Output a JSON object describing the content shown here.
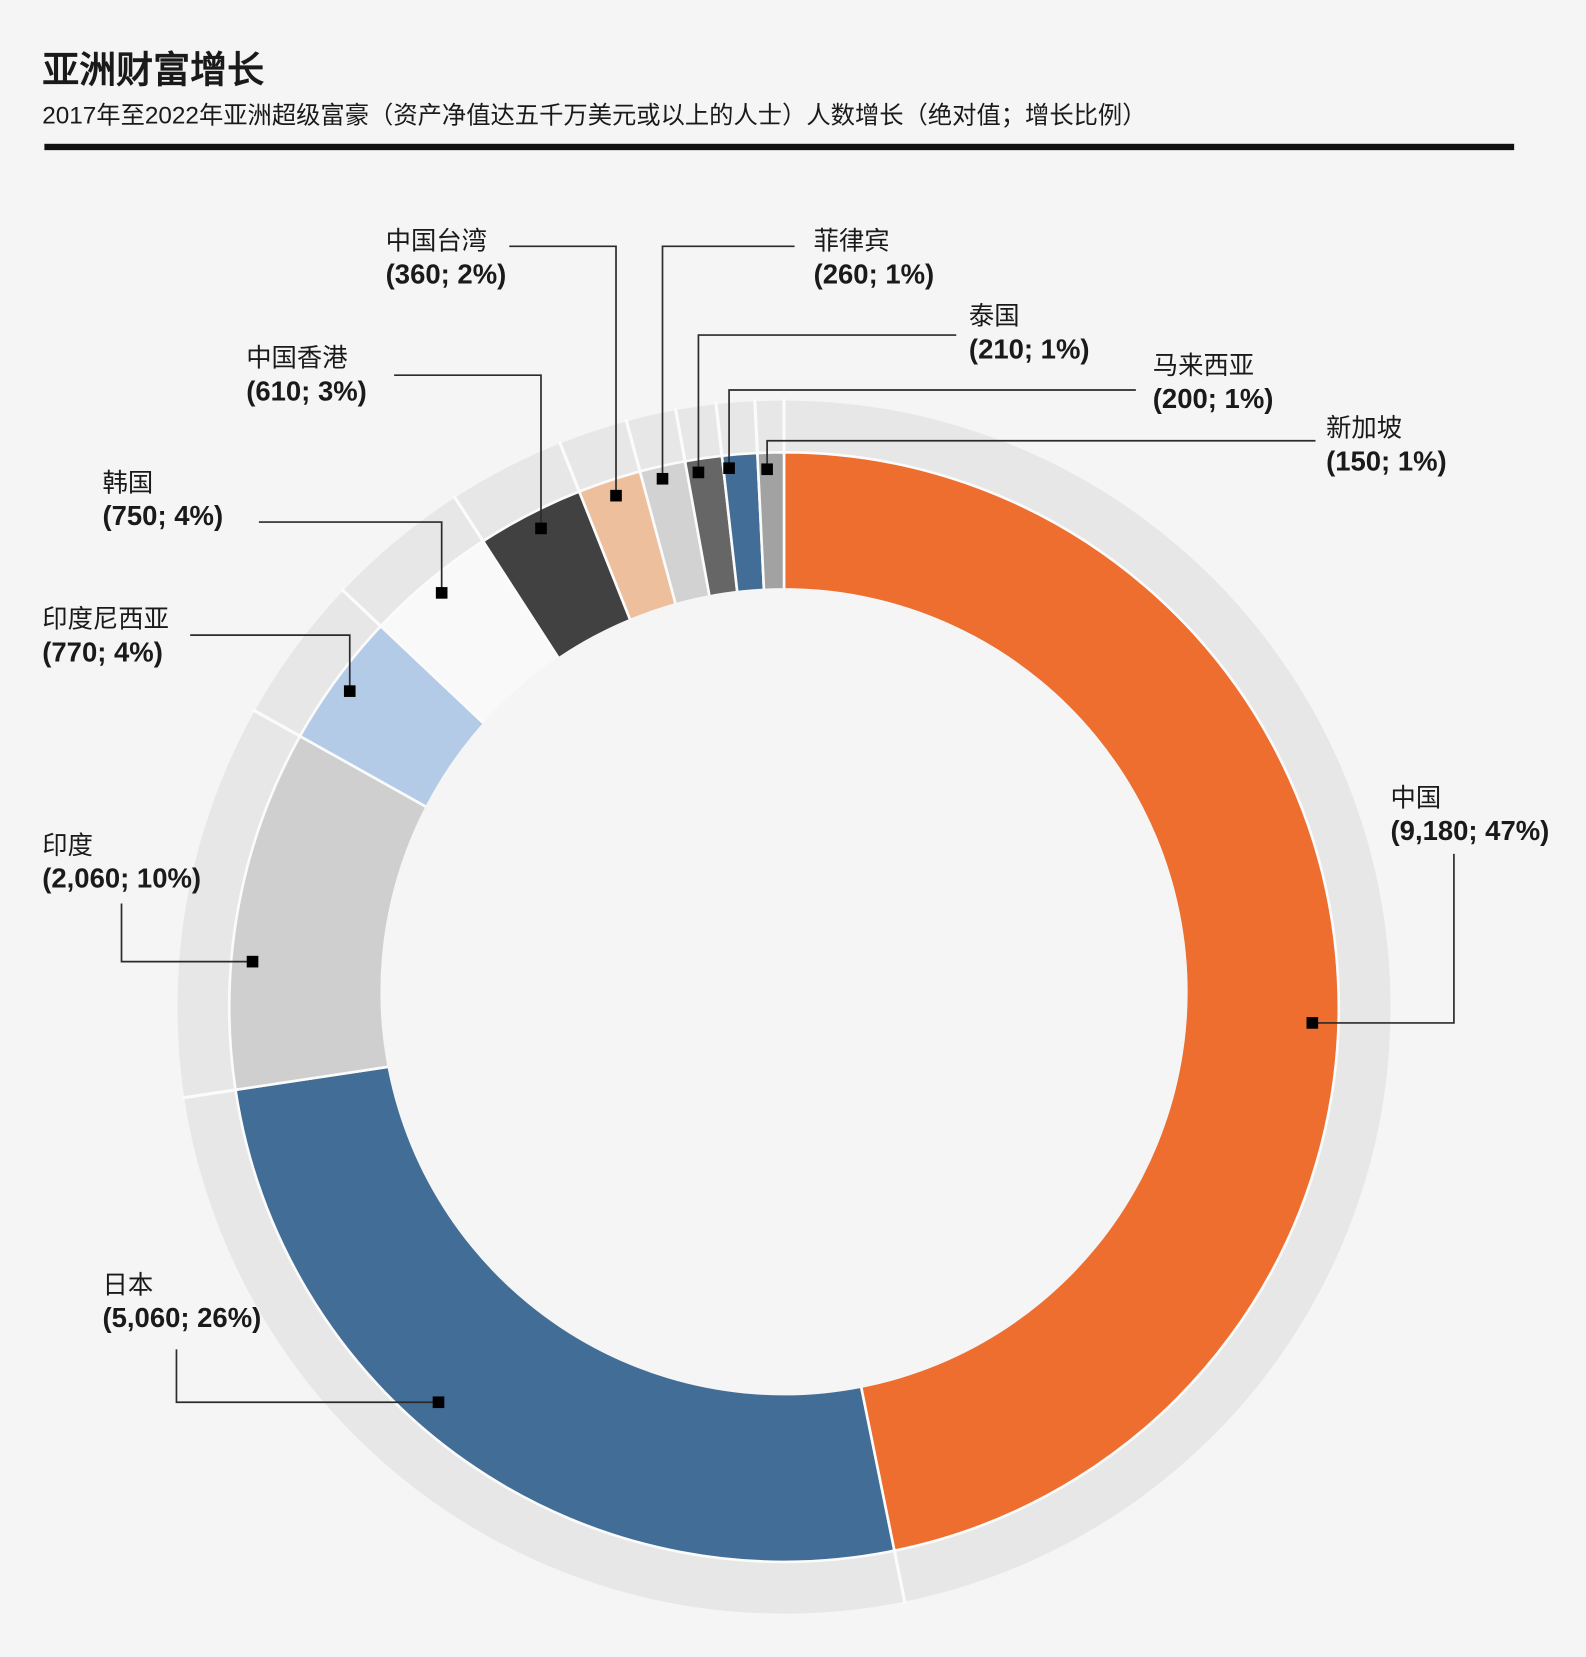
{
  "title": "亚洲财富增长",
  "subtitle": "2017年至2022年亚洲超级富豪（资产净值达五千万美元或以上的人士）人数增长（绝对值；增长比例）",
  "colors": {
    "background": "#f5f5f5",
    "outer_ring": "#e7e7e7",
    "separator": "#fbfbfb",
    "rule": "#111111",
    "leader": "#2b2b2b",
    "marker": "#000000",
    "text": "#1a1a1a"
  },
  "chart_data": {
    "type": "pie",
    "donut": true,
    "categories": [
      "中国",
      "日本",
      "印度",
      "印度尼西亚",
      "韩国",
      "中国香港",
      "中国台湾",
      "菲律宾",
      "泰国",
      "马来西亚",
      "新加坡"
    ],
    "values": [
      9180,
      5060,
      2060,
      770,
      750,
      610,
      360,
      260,
      210,
      200,
      150
    ],
    "percent": [
      47,
      26,
      10,
      4,
      4,
      3,
      2,
      1,
      1,
      1,
      1
    ],
    "colors": [
      "#ed6e2f",
      "#416d96",
      "#cfcfcf",
      "#b4cbe8",
      "#f9f9f9",
      "#414141",
      "#eebf9d",
      "#d2d2d2",
      "#666666",
      "#416d96",
      "#a2a2a2"
    ]
  }
}
